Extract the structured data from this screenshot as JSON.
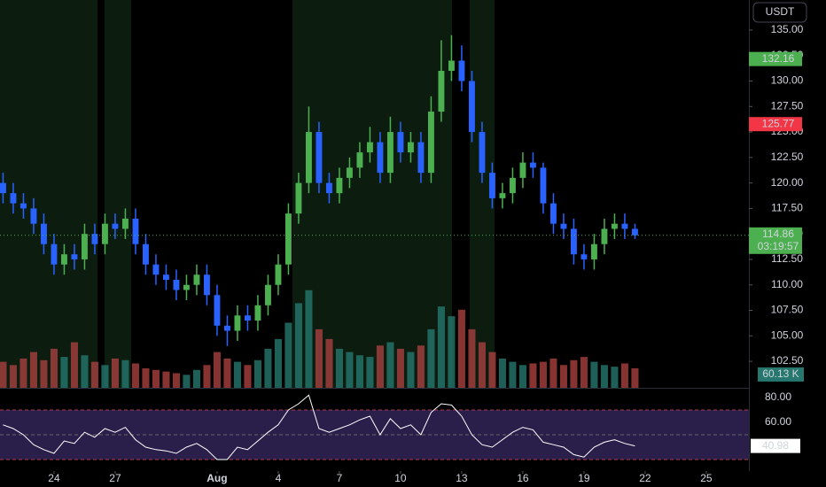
{
  "chart_data": {
    "type": "candlestick",
    "currency": "USDT",
    "x": [
      21.5,
      22,
      22.5,
      23,
      23.5,
      24,
      24.5,
      25,
      25.5,
      26,
      26.5,
      27,
      27.5,
      28,
      28.5,
      29,
      29.5,
      30,
      30.5,
      31,
      31.5,
      32,
      32.5,
      33,
      33.5,
      34,
      34.5,
      35,
      35.5,
      36,
      36.5,
      37,
      37.5,
      38,
      38.5,
      39,
      39.5,
      40,
      40.5,
      41,
      41.5,
      42,
      42.5,
      43,
      43.5,
      44,
      44.5,
      45,
      45.5,
      46,
      46.5,
      47,
      47.5,
      48,
      48.5,
      49,
      49.5,
      50,
      50.5,
      51,
      51.5,
      52,
      52.5
    ],
    "open": [
      120,
      119,
      118,
      117.5,
      116,
      114,
      112,
      113,
      112.5,
      115,
      114,
      116,
      115.5,
      116.5,
      114,
      112,
      111,
      110.5,
      109.5,
      110,
      111,
      109,
      106,
      105.5,
      107,
      106.5,
      108,
      110,
      112,
      117,
      120,
      125,
      120,
      119,
      120.5,
      121.5,
      123,
      124,
      121,
      125,
      123,
      124,
      121,
      127,
      131,
      132,
      130,
      125,
      121,
      118.5,
      119,
      120.5,
      122,
      121.5,
      118,
      116,
      115.5,
      113,
      112.5,
      114,
      115.5,
      116,
      115.5
    ],
    "high": [
      121,
      120,
      119,
      118.5,
      117,
      115,
      114,
      114,
      116,
      116,
      117,
      117,
      117.5,
      117.5,
      115,
      113,
      112,
      111.5,
      111,
      112,
      112,
      110,
      107,
      108,
      108,
      109,
      111,
      113,
      118,
      121,
      127.5,
      126,
      121,
      121.5,
      122.5,
      124,
      125.5,
      125,
      126.5,
      126,
      125,
      125,
      128.5,
      134,
      134.5,
      133.5,
      131,
      126,
      122,
      120,
      121.5,
      123,
      123,
      122,
      119,
      117,
      116.5,
      114,
      115,
      116.5,
      117,
      117,
      116
    ],
    "low": [
      118,
      117,
      116.5,
      115,
      113,
      111,
      111,
      111.5,
      111.5,
      113,
      113,
      114.5,
      114.5,
      113,
      111,
      110,
      109.5,
      108.5,
      108.5,
      109,
      108,
      105,
      104,
      104.5,
      105.5,
      105.5,
      107,
      109,
      111,
      116,
      119,
      119,
      118,
      118,
      119.5,
      120.5,
      122,
      120,
      120,
      122,
      122,
      120,
      120,
      126,
      130,
      129,
      124,
      120,
      117.5,
      117.5,
      118,
      119.5,
      120.5,
      117,
      115,
      114.5,
      112,
      111.5,
      111.5,
      113,
      114.5,
      114.5,
      114.5
    ],
    "close": [
      119,
      118,
      117.5,
      116,
      114,
      112,
      113,
      112.5,
      115,
      114,
      116,
      115.5,
      116.5,
      114,
      112,
      111,
      110.5,
      109.5,
      110,
      111,
      109,
      106,
      105.5,
      107,
      106.5,
      108,
      110,
      112,
      117,
      120,
      125,
      120,
      119,
      120.5,
      121.5,
      123,
      124,
      121,
      125,
      123,
      124,
      121,
      127,
      131,
      132,
      130,
      125,
      121,
      118.5,
      119,
      120.5,
      122,
      121.5,
      118,
      116,
      115.5,
      113,
      112.5,
      114,
      115.5,
      116,
      115.5,
      114.86
    ],
    "up_color": "#4caf50",
    "down_color": "#2962ff",
    "xlim": [
      21.35,
      58.09
    ],
    "xticks": [
      24,
      27,
      {
        "value": 32,
        "label": "Aug"
      },
      {
        "value": 35,
        "label": "4"
      },
      {
        "value": 38,
        "label": "7"
      },
      {
        "value": 41,
        "label": "10"
      },
      {
        "value": 44,
        "label": "13"
      },
      {
        "value": 47,
        "label": "16"
      },
      {
        "value": 50,
        "label": "19"
      },
      {
        "value": 53,
        "label": "22"
      },
      {
        "value": 56,
        "label": "25"
      }
    ],
    "ylim": [
      99.9,
      137.95
    ],
    "yticks": [
      {
        "value": 102.5,
        "label": "102.50"
      },
      {
        "value": 105,
        "label": "105.00"
      },
      {
        "value": 107.5,
        "label": "107.50"
      },
      {
        "value": 110,
        "label": "110.00"
      },
      {
        "value": 112.5,
        "label": "112.50"
      },
      {
        "value": 115,
        "label": "115.00"
      },
      {
        "value": 117.5,
        "label": "117.50"
      },
      {
        "value": 120,
        "label": "120.00"
      },
      {
        "value": 122.5,
        "label": "122.50"
      },
      {
        "value": 125,
        "label": "125.00"
      },
      {
        "value": 127.5,
        "label": "127.50"
      },
      {
        "value": 130,
        "label": "130.00"
      },
      {
        "value": 132.5,
        "label": "132.50"
      },
      {
        "value": 135,
        "label": "135.00"
      }
    ],
    "last_price": 114.86,
    "countdown": "03:19:57",
    "price_levels": [
      {
        "value": 132.16,
        "color": "#4caf50"
      },
      {
        "value": 125.77,
        "color": "#f23645"
      }
    ],
    "volume": {
      "values": [
        80,
        70,
        90,
        110,
        85,
        120,
        95,
        140,
        100,
        80,
        70,
        90,
        85,
        75,
        60,
        55,
        50,
        45,
        40,
        55,
        70,
        110,
        90,
        80,
        70,
        85,
        120,
        150,
        200,
        260,
        300,
        180,
        150,
        120,
        110,
        100,
        95,
        130,
        140,
        120,
        110,
        130,
        180,
        250,
        220,
        240,
        180,
        140,
        110,
        90,
        80,
        70,
        75,
        80,
        90,
        70,
        85,
        95,
        80,
        70,
        65,
        75,
        60.13
      ],
      "ylim": [
        0,
        400
      ],
      "last_label": "60.13 K",
      "up_color": "#26786e",
      "down_color": "#a8403f"
    },
    "rsi": {
      "values": [
        58,
        55,
        50,
        42,
        38,
        35,
        45,
        43,
        52,
        48,
        55,
        52,
        56,
        46,
        40,
        38,
        37,
        35,
        40,
        43,
        38,
        30,
        30,
        40,
        38,
        45,
        52,
        58,
        70,
        75,
        82,
        55,
        52,
        55,
        58,
        62,
        65,
        50,
        63,
        55,
        58,
        50,
        68,
        75,
        74,
        65,
        50,
        42,
        40,
        46,
        52,
        56,
        54,
        44,
        42,
        40,
        34,
        32,
        40,
        44,
        46,
        43,
        40.98
      ],
      "ylim": [
        20.7,
        86.4
      ],
      "yticks": [
        {
          "value": 80,
          "label": "80.00"
        },
        {
          "value": 60,
          "label": "60.00"
        }
      ],
      "band": [
        30,
        70
      ],
      "midline": 50,
      "color": "#ffffff"
    }
  }
}
